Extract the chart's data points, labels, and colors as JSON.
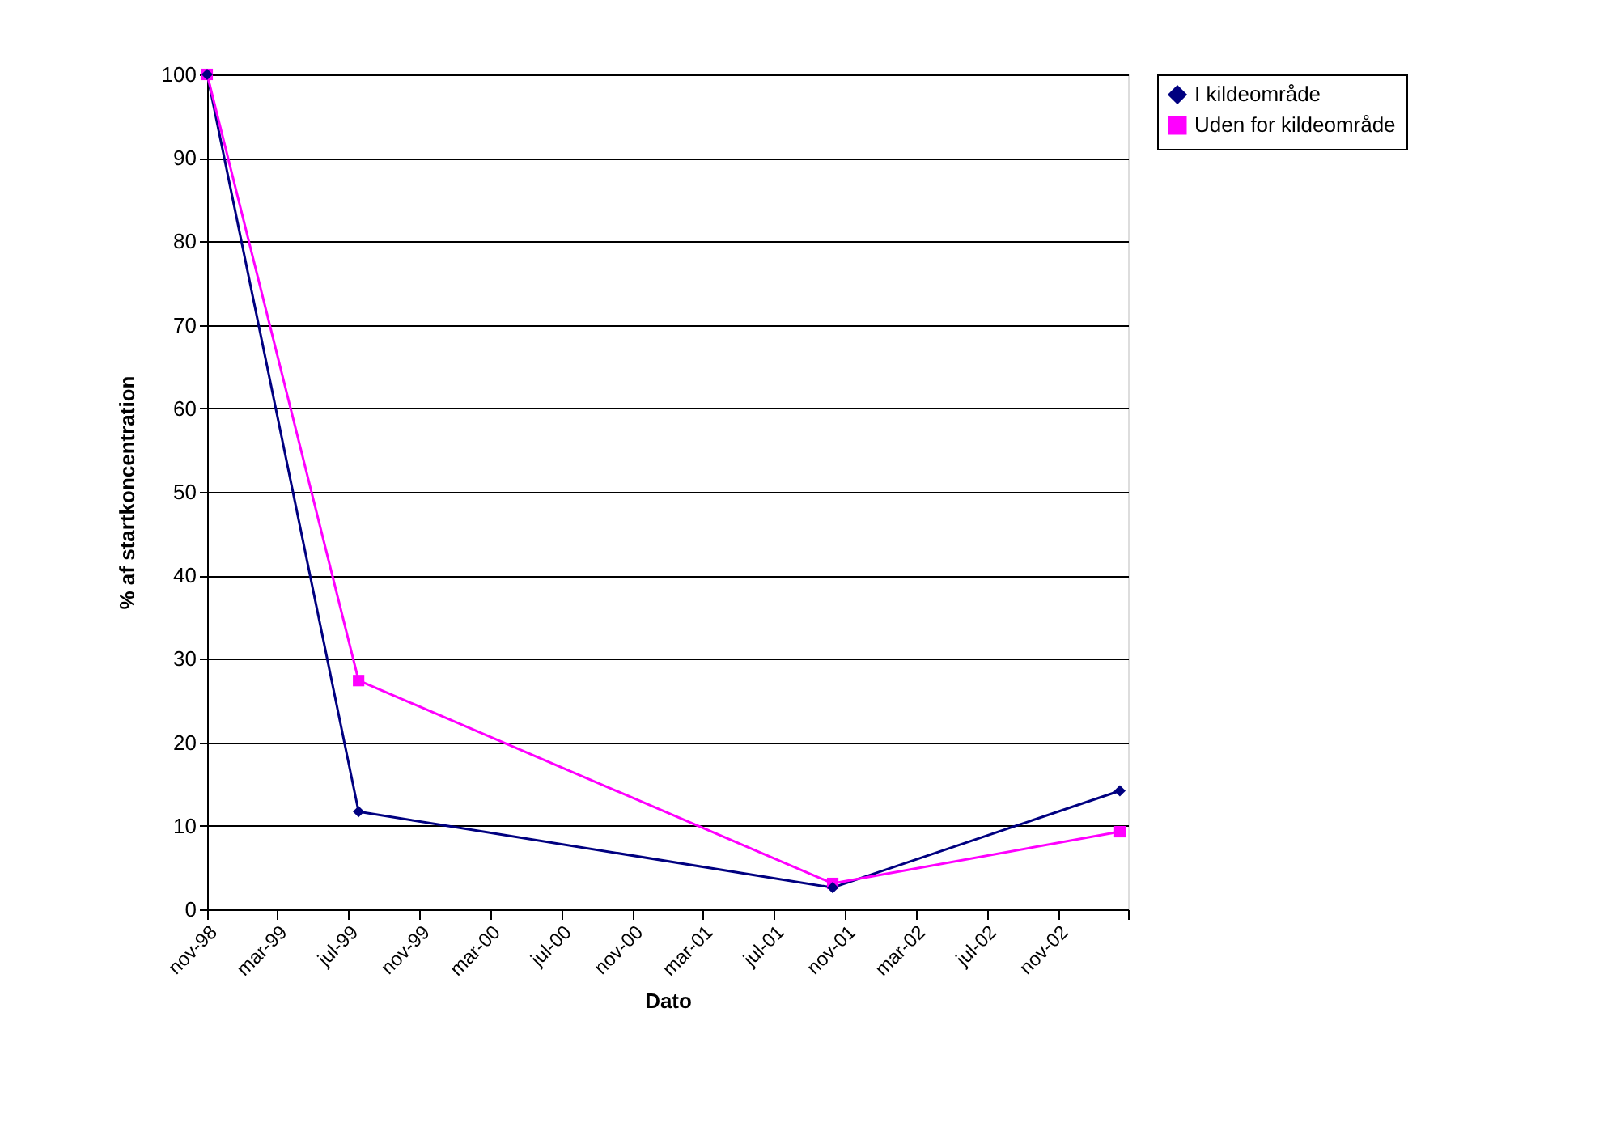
{
  "chart_data": {
    "type": "line",
    "xlabel": "Dato",
    "ylabel": "% af startkoncentration",
    "x": [
      "1998-11-01",
      "1999-07-19",
      "2001-10-10",
      "2003-02-15"
    ],
    "series": [
      {
        "name": "I kildeområde",
        "color": "#000080",
        "marker": "diamond",
        "values": [
          100,
          11.7,
          2.6,
          14.2
        ]
      },
      {
        "name": "Uden for kildeområde",
        "color": "#ff00ff",
        "marker": "square",
        "values": [
          100,
          27.4,
          3.1,
          9.3
        ]
      }
    ],
    "xlim": [
      "1998-11-01",
      "2003-03-01"
    ],
    "xticks": [
      {
        "value": "1998-11-01",
        "label": "nov-98"
      },
      {
        "value": "1999-03-01",
        "label": "mar-99"
      },
      {
        "value": "1999-07-01",
        "label": "jul-99"
      },
      {
        "value": "1999-11-01",
        "label": "nov-99"
      },
      {
        "value": "2000-03-01",
        "label": "mar-00"
      },
      {
        "value": "2000-07-01",
        "label": "jul-00"
      },
      {
        "value": "2000-11-01",
        "label": "nov-00"
      },
      {
        "value": "2001-03-01",
        "label": "mar-01"
      },
      {
        "value": "2001-07-01",
        "label": "jul-01"
      },
      {
        "value": "2001-11-01",
        "label": "nov-01"
      },
      {
        "value": "2002-03-01",
        "label": "mar-02"
      },
      {
        "value": "2002-07-01",
        "label": "jul-02"
      },
      {
        "value": "2002-11-01",
        "label": "nov-02"
      },
      {
        "value": "2003-03-01",
        "label": null
      }
    ],
    "ylim": [
      0,
      100
    ],
    "yticks": [
      0,
      10,
      20,
      30,
      40,
      50,
      60,
      70,
      80,
      90,
      100
    ],
    "grid": "y",
    "legend": "right",
    "line_style": "solid"
  }
}
